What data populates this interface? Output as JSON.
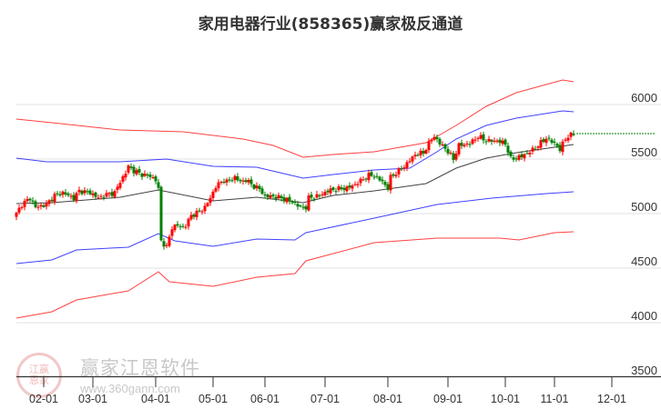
{
  "chart_data": {
    "type": "candlestick-channel",
    "title": "家用电器行业(858365)赢家极反通道",
    "xlabel": "",
    "ylabel": "",
    "ylim": [
      3500,
      6300
    ],
    "yticks": [
      3500,
      4000,
      4500,
      5000,
      5500,
      6000
    ],
    "x_unit": "trading-day index",
    "xticks": [
      {
        "label": "02-01",
        "x": 10
      },
      {
        "label": "03-01",
        "x": 28
      },
      {
        "label": "04-01",
        "x": 51
      },
      {
        "label": "05-01",
        "x": 72
      },
      {
        "label": "06-01",
        "x": 91
      },
      {
        "label": "07-01",
        "x": 113
      },
      {
        "label": "08-01",
        "x": 136
      },
      {
        "label": "09-01",
        "x": 158
      },
      {
        "label": "10-01",
        "x": 179
      },
      {
        "label": "11-01",
        "x": 197
      },
      {
        "label": "12-01",
        "x": 218
      }
    ],
    "xlim": [
      0,
      236
    ],
    "grid": true,
    "closes": [
      [
        0,
        5000
      ],
      [
        2,
        5083
      ],
      [
        5,
        5142
      ],
      [
        7,
        5058
      ],
      [
        11,
        5083
      ],
      [
        14,
        5167
      ],
      [
        17,
        5192
      ],
      [
        21,
        5142
      ],
      [
        23,
        5208
      ],
      [
        27,
        5192
      ],
      [
        30,
        5142
      ],
      [
        32,
        5167
      ],
      [
        36,
        5192
      ],
      [
        38,
        5292
      ],
      [
        40,
        5375
      ],
      [
        41,
        5433
      ],
      [
        43,
        5392
      ],
      [
        46,
        5358
      ],
      [
        49,
        5342
      ],
      [
        51,
        5308
      ],
      [
        52,
        5225
      ],
      [
        53,
        4750
      ],
      [
        55,
        4692
      ],
      [
        57,
        4875
      ],
      [
        59,
        4892
      ],
      [
        61,
        4875
      ],
      [
        62,
        4892
      ],
      [
        64,
        4983
      ],
      [
        67,
        5017
      ],
      [
        69,
        5058
      ],
      [
        71,
        5142
      ],
      [
        73,
        5250
      ],
      [
        76,
        5308
      ],
      [
        77,
        5292
      ],
      [
        80,
        5333
      ],
      [
        82,
        5292
      ],
      [
        84,
        5308
      ],
      [
        87,
        5250
      ],
      [
        89,
        5225
      ],
      [
        91,
        5158
      ],
      [
        94,
        5158
      ],
      [
        97,
        5142
      ],
      [
        101,
        5108
      ],
      [
        104,
        5058
      ],
      [
        106,
        5058
      ],
      [
        107,
        5142
      ],
      [
        111,
        5167
      ],
      [
        114,
        5208
      ],
      [
        117,
        5225
      ],
      [
        121,
        5233
      ],
      [
        124,
        5267
      ],
      [
        127,
        5317
      ],
      [
        129,
        5350
      ],
      [
        131,
        5350
      ],
      [
        134,
        5292
      ],
      [
        136,
        5233
      ],
      [
        137,
        5333
      ],
      [
        142,
        5433
      ],
      [
        146,
        5542
      ],
      [
        149,
        5558
      ],
      [
        152,
        5683
      ],
      [
        153,
        5708
      ],
      [
        155,
        5642
      ],
      [
        157,
        5600
      ],
      [
        160,
        5500
      ],
      [
        162,
        5625
      ],
      [
        166,
        5642
      ],
      [
        169,
        5708
      ],
      [
        172,
        5667
      ],
      [
        176,
        5667
      ],
      [
        179,
        5642
      ],
      [
        181,
        5500
      ],
      [
        185,
        5525
      ],
      [
        189,
        5583
      ],
      [
        194,
        5692
      ],
      [
        198,
        5625
      ],
      [
        199,
        5583
      ],
      [
        201,
        5692
      ],
      [
        204,
        5733
      ]
    ],
    "last_price": 5733,
    "series": [
      {
        "name": "upper-outer",
        "color": "#ff0000",
        "points": [
          [
            0,
            5867
          ],
          [
            13,
            5833
          ],
          [
            38,
            5767
          ],
          [
            61,
            5750
          ],
          [
            83,
            5683
          ],
          [
            94,
            5625
          ],
          [
            105,
            5517
          ],
          [
            116,
            5542
          ],
          [
            131,
            5567
          ],
          [
            150,
            5650
          ],
          [
            161,
            5808
          ],
          [
            172,
            5983
          ],
          [
            183,
            6108
          ],
          [
            200,
            6225
          ],
          [
            204,
            6208
          ]
        ]
      },
      {
        "name": "upper-inner",
        "color": "#0000ff",
        "points": [
          [
            0,
            5508
          ],
          [
            11,
            5475
          ],
          [
            38,
            5475
          ],
          [
            55,
            5500
          ],
          [
            72,
            5433
          ],
          [
            88,
            5425
          ],
          [
            105,
            5325
          ],
          [
            116,
            5358
          ],
          [
            131,
            5400
          ],
          [
            144,
            5417
          ],
          [
            154,
            5567
          ],
          [
            161,
            5683
          ],
          [
            172,
            5808
          ],
          [
            183,
            5875
          ],
          [
            200,
            5942
          ],
          [
            204,
            5933
          ]
        ]
      },
      {
        "name": "middle",
        "color": "#222222",
        "points": [
          [
            0,
            5092
          ],
          [
            13,
            5100
          ],
          [
            38,
            5150
          ],
          [
            52,
            5217
          ],
          [
            72,
            5117
          ],
          [
            88,
            5150
          ],
          [
            105,
            5100
          ],
          [
            116,
            5167
          ],
          [
            131,
            5208
          ],
          [
            150,
            5275
          ],
          [
            161,
            5417
          ],
          [
            172,
            5508
          ],
          [
            183,
            5558
          ],
          [
            204,
            5633
          ]
        ]
      },
      {
        "name": "lower-inner",
        "color": "#0000ff",
        "points": [
          [
            0,
            4542
          ],
          [
            13,
            4575
          ],
          [
            22,
            4667
          ],
          [
            41,
            4692
          ],
          [
            52,
            4817
          ],
          [
            58,
            4750
          ],
          [
            72,
            4700
          ],
          [
            88,
            4767
          ],
          [
            102,
            4758
          ],
          [
            106,
            4825
          ],
          [
            131,
            4958
          ],
          [
            154,
            5083
          ],
          [
            174,
            5142
          ],
          [
            194,
            5183
          ],
          [
            204,
            5200
          ]
        ]
      },
      {
        "name": "lower-outer",
        "color": "#ff0000",
        "points": [
          [
            0,
            4042
          ],
          [
            13,
            4100
          ],
          [
            22,
            4208
          ],
          [
            41,
            4292
          ],
          [
            52,
            4467
          ],
          [
            56,
            4375
          ],
          [
            72,
            4333
          ],
          [
            88,
            4417
          ],
          [
            102,
            4450
          ],
          [
            106,
            4567
          ],
          [
            131,
            4733
          ],
          [
            154,
            4775
          ],
          [
            177,
            4775
          ],
          [
            184,
            4758
          ],
          [
            197,
            4825
          ],
          [
            204,
            4833
          ]
        ]
      }
    ],
    "colors": {
      "up": "#ff0000",
      "down": "#008000",
      "grid": "#e0e0e0",
      "last_price": "#008000"
    }
  },
  "watermark": {
    "brand": "赢家江恩软件",
    "url": "www.360gann.com",
    "logo_text": "江赢恩家"
  }
}
